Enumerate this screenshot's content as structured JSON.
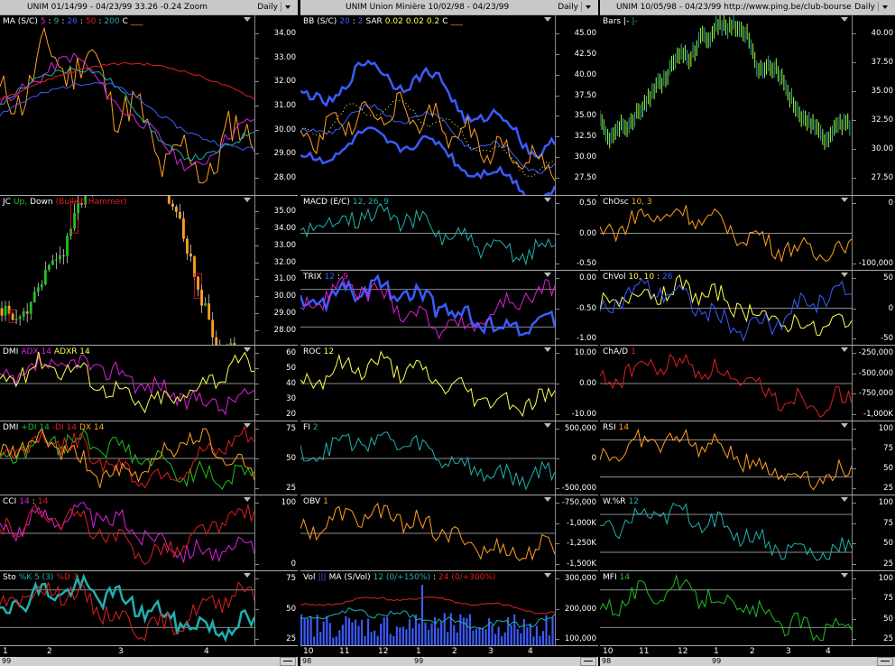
{
  "colors": {
    "bg": "#000000",
    "orange": "#ffa020",
    "blue": "#3b5cff",
    "cyan": "#20b0b0",
    "red": "#e02020",
    "yellow": "#ffff50",
    "green": "#20c020",
    "magenta": "#e020e0",
    "lime": "#a0ff40",
    "white": "#ffffff"
  },
  "columns": [
    {
      "header": "UNIM  01/14/99 - 04/23/99   33.26  -0.24   Zoom",
      "period": "Daily",
      "xlabels": [
        "1",
        "2",
        "3",
        "4"
      ],
      "year": "99",
      "panels": [
        {
          "legend": [
            {
              "t": "MA (S/C)",
              "c": "#ffffff"
            },
            {
              "t": "5",
              "c": "#e020e0"
            },
            {
              "t": ":",
              "c": "#ffffff"
            },
            {
              "t": "9",
              "c": "#20b0b0"
            },
            {
              "t": ":",
              "c": "#ffffff"
            },
            {
              "t": "26",
              "c": "#3b5cff"
            },
            {
              "t": ":",
              "c": "#ffffff"
            },
            {
              "t": "50",
              "c": "#e02020"
            },
            {
              "t": ":",
              "c": "#ffffff"
            },
            {
              "t": "200",
              "c": "#20b0b0"
            },
            {
              "t": "C",
              "c": "#ffffff"
            },
            {
              "t": "___",
              "c": "#ffa020"
            }
          ],
          "ticks": [
            "34.00",
            "33.00",
            "32.00",
            "31.00",
            "30.00",
            "29.00",
            "28.00"
          ]
        },
        {
          "legend": [
            {
              "t": "JC",
              "c": "#ffffff"
            },
            {
              "t": "Up,",
              "c": "#20c020"
            },
            {
              "t": "Down",
              "c": "#ffffff"
            },
            {
              "t": "(Bullish Hammer)",
              "c": "#e02020"
            }
          ],
          "ticks": [
            "35.00",
            "34.00",
            "33.00",
            "32.00",
            "31.00",
            "30.00",
            "29.00",
            "28.00"
          ]
        },
        {
          "legend": [
            {
              "t": "DMI",
              "c": "#ffffff"
            },
            {
              "t": "ADX 14",
              "c": "#e020e0"
            },
            {
              "t": "ADXR 14",
              "c": "#ffff50"
            }
          ],
          "ticks": [
            "60",
            "50",
            "40",
            "30",
            "20"
          ]
        },
        {
          "legend": [
            {
              "t": "DMI",
              "c": "#ffffff"
            },
            {
              "t": "+DI 14",
              "c": "#20c020"
            },
            {
              "t": "-DI 14",
              "c": "#e02020"
            },
            {
              "t": "DX 14",
              "c": "#ffa020"
            }
          ],
          "ticks": [
            "75",
            "50",
            "25"
          ]
        },
        {
          "legend": [
            {
              "t": "CCI",
              "c": "#ffffff"
            },
            {
              "t": "14",
              "c": "#e020e0"
            },
            {
              "t": ":",
              "c": "#ffffff"
            },
            {
              "t": "14",
              "c": "#e02020"
            }
          ],
          "ticks": [
            "100",
            "0"
          ]
        },
        {
          "legend": [
            {
              "t": "Sto",
              "c": "#ffffff"
            },
            {
              "t": "%K 5 (3)",
              "c": "#20b0b0"
            },
            {
              "t": "%D 3",
              "c": "#e02020"
            }
          ],
          "ticks": [
            "75",
            "50",
            "25"
          ]
        }
      ]
    },
    {
      "header": "UNIM  Union Minière  10/02/98 - 04/23/99",
      "period": "Daily",
      "xlabels": [
        "10",
        "11",
        "12",
        "1",
        "2",
        "3",
        "4"
      ],
      "year_left": "98",
      "year": "99",
      "panels": [
        {
          "legend": [
            {
              "t": "BB (S/C)",
              "c": "#ffffff"
            },
            {
              "t": "20",
              "c": "#3b5cff"
            },
            {
              "t": ":",
              "c": "#ffffff"
            },
            {
              "t": "2",
              "c": "#3b5cff"
            },
            {
              "t": "SAR",
              "c": "#ffffff"
            },
            {
              "t": "0.02",
              "c": "#ffff50"
            },
            {
              "t": "0.02",
              "c": "#ffff50"
            },
            {
              "t": "0.2",
              "c": "#ffff50"
            },
            {
              "t": "C",
              "c": "#ffffff"
            },
            {
              "t": "___",
              "c": "#ffa020"
            }
          ],
          "ticks": [
            "45.00",
            "42.50",
            "40.00",
            "37.50",
            "35.00",
            "32.50",
            "30.00",
            "27.50"
          ]
        },
        {
          "legend": [
            {
              "t": "MACD (E/C)",
              "c": "#ffffff"
            },
            {
              "t": "12, 26, 9",
              "c": "#20b0b0"
            }
          ],
          "ticks": [
            "0.50",
            "0.00",
            "-0.50"
          ]
        },
        {
          "legend": [
            {
              "t": "TRIX",
              "c": "#ffffff"
            },
            {
              "t": "12",
              "c": "#3b5cff"
            },
            {
              "t": ":",
              "c": "#ffffff"
            },
            {
              "t": "9",
              "c": "#e020e0"
            }
          ],
          "ticks": [
            "0.00",
            "-0.50",
            "-1.00"
          ]
        },
        {
          "legend": [
            {
              "t": "ROC",
              "c": "#ffffff"
            },
            {
              "t": "12",
              "c": "#ffff50"
            }
          ],
          "ticks": [
            "10.00",
            "0.00",
            "-10.00"
          ]
        },
        {
          "legend": [
            {
              "t": "FI",
              "c": "#ffffff"
            },
            {
              "t": "2",
              "c": "#20b0b0"
            }
          ],
          "ticks": [
            "500,000",
            "0",
            "-500,000"
          ]
        },
        {
          "legend": [
            {
              "t": "OBV",
              "c": "#ffffff"
            },
            {
              "t": "1",
              "c": "#ffa020"
            }
          ],
          "ticks": [
            "-750,000",
            "-1,000K",
            "-1,250K",
            "-1,500K"
          ]
        },
        {
          "legend": [
            {
              "t": "Vol",
              "c": "#ffffff"
            },
            {
              "t": "|||",
              "c": "#3b5cff"
            },
            {
              "t": "MA (S/Vol)",
              "c": "#ffffff"
            },
            {
              "t": "12 (0/+150%)",
              "c": "#20b0b0"
            },
            {
              "t": ":",
              "c": "#ffffff"
            },
            {
              "t": "24 (0/+300%)",
              "c": "#e02020"
            }
          ],
          "ticks": [
            "300,000",
            "200,000",
            "100,000"
          ]
        }
      ]
    },
    {
      "header": "UNIM  10/05/98 - 04/23/99   http://www.ping.be/club-bourse",
      "period": "Daily",
      "xlabels": [
        "10",
        "11",
        "12",
        "1",
        "2",
        "3",
        "4"
      ],
      "year_left": "98",
      "year": "99",
      "panels": [
        {
          "legend": [
            {
              "t": "Bars",
              "c": "#ffffff"
            },
            {
              "t": "|-",
              "c": "#ffffff"
            },
            {
              "t": "|-",
              "c": "#20b0b0"
            }
          ],
          "ticks": [
            "40.00",
            "37.50",
            "35.00",
            "32.50",
            "30.00",
            "27.50"
          ]
        },
        {
          "legend": [
            {
              "t": "ChOsc",
              "c": "#ffffff"
            },
            {
              "t": "10, 3",
              "c": "#ffa020"
            }
          ],
          "ticks": [
            "0",
            "-100,000"
          ]
        },
        {
          "legend": [
            {
              "t": "ChVol",
              "c": "#ffffff"
            },
            {
              "t": "10, 10",
              "c": "#ffff50"
            },
            {
              "t": ":",
              "c": "#ffffff"
            },
            {
              "t": "26",
              "c": "#3b5cff"
            }
          ],
          "ticks": [
            "50",
            "0",
            "-50"
          ]
        },
        {
          "legend": [
            {
              "t": "ChA/D",
              "c": "#ffffff"
            },
            {
              "t": "1",
              "c": "#e02020"
            }
          ],
          "ticks": [
            "-250,000",
            "-500,000",
            "-750,000",
            "-1,000K"
          ]
        },
        {
          "legend": [
            {
              "t": "RSI",
              "c": "#ffffff"
            },
            {
              "t": "14",
              "c": "#ffa020"
            }
          ],
          "ticks": [
            "100",
            "75",
            "50",
            "25"
          ]
        },
        {
          "legend": [
            {
              "t": "W.%R",
              "c": "#ffffff"
            },
            {
              "t": "12",
              "c": "#20b0b0"
            }
          ],
          "ticks": [
            "100",
            "75",
            "50",
            "25"
          ]
        },
        {
          "legend": [
            {
              "t": "MFI",
              "c": "#ffffff"
            },
            {
              "t": "14",
              "c": "#20c020"
            }
          ],
          "ticks": [
            "100",
            "75",
            "50",
            "25"
          ]
        }
      ]
    }
  ]
}
